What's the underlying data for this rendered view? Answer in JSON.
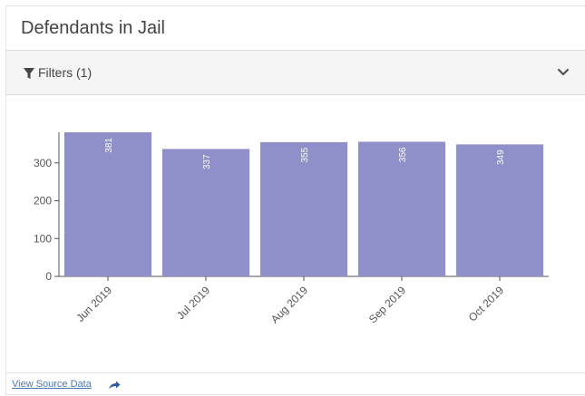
{
  "card": {
    "title": "Defendants in Jail"
  },
  "filters": {
    "label": "Filters (1)",
    "icon": "filter-icon",
    "expand_icon": "chevron-down-icon"
  },
  "footer": {
    "link_label": "View Source Data",
    "link_icon": "share-arrow-icon"
  },
  "colors": {
    "bar": "#8f8fca",
    "axis": "#555555",
    "grid": "#e6e6e6"
  },
  "chart_data": {
    "type": "bar",
    "categories": [
      "Jun 2019",
      "Jul 2019",
      "Aug 2019",
      "Sep 2019",
      "Oct 2019"
    ],
    "values": [
      381,
      337,
      355,
      356,
      349
    ],
    "yticks": [
      0,
      100,
      200,
      300
    ],
    "ylim": [
      0,
      381
    ],
    "title": "",
    "xlabel": "",
    "ylabel": "",
    "data_labels": [
      "381",
      "337",
      "355",
      "356",
      "349"
    ]
  }
}
